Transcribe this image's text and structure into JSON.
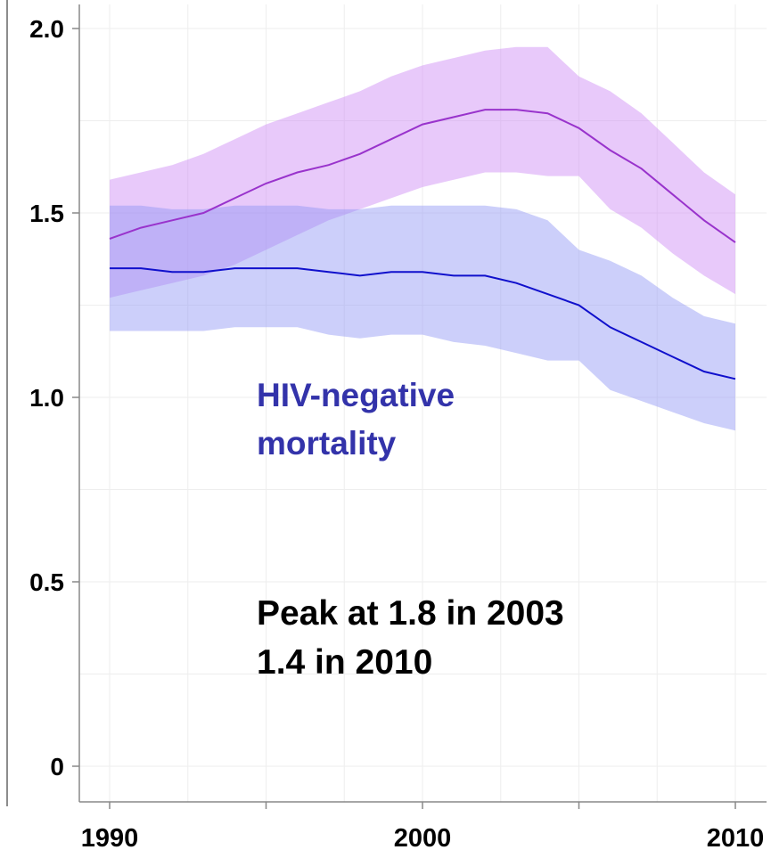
{
  "chart_data": {
    "type": "area",
    "title": "",
    "xlabel": "",
    "ylabel": "",
    "xlim": [
      1990,
      2010
    ],
    "ylim": [
      0,
      2.0
    ],
    "grid": true,
    "x_ticks": [
      {
        "value": 1990,
        "label": "1990"
      },
      {
        "value": 2000,
        "label": "2000"
      },
      {
        "value": 2010,
        "label": "2010"
      }
    ],
    "y_ticks": [
      {
        "value": 0,
        "label": "0"
      },
      {
        "value": 0.5,
        "label": "0.5"
      },
      {
        "value": 1.0,
        "label": "1.0"
      },
      {
        "value": 1.5,
        "label": "1.5"
      },
      {
        "value": 2.0,
        "label": "2.0"
      }
    ],
    "x": [
      1990,
      1991,
      1992,
      1993,
      1994,
      1995,
      1996,
      1997,
      1998,
      1999,
      2000,
      2001,
      2002,
      2003,
      2004,
      2005,
      2006,
      2007,
      2008,
      2009,
      2010
    ],
    "series": [
      {
        "key": "total",
        "line_color": "#9933cc",
        "band_color": "#cc88f5",
        "band_opacity": 0.45,
        "values": [
          1.43,
          1.46,
          1.48,
          1.5,
          1.54,
          1.58,
          1.61,
          1.63,
          1.66,
          1.7,
          1.74,
          1.76,
          1.78,
          1.78,
          1.77,
          1.73,
          1.67,
          1.62,
          1.55,
          1.48,
          1.42
        ],
        "lower": [
          1.27,
          1.29,
          1.31,
          1.33,
          1.36,
          1.4,
          1.44,
          1.48,
          1.51,
          1.54,
          1.57,
          1.59,
          1.61,
          1.61,
          1.6,
          1.6,
          1.51,
          1.46,
          1.39,
          1.33,
          1.28
        ],
        "upper": [
          1.59,
          1.61,
          1.63,
          1.66,
          1.7,
          1.74,
          1.77,
          1.8,
          1.83,
          1.87,
          1.9,
          1.92,
          1.94,
          1.95,
          1.95,
          1.87,
          1.83,
          1.77,
          1.69,
          1.61,
          1.55
        ]
      },
      {
        "key": "hiv_negative",
        "line_color": "#1010cc",
        "band_color": "#8f94f5",
        "band_opacity": 0.45,
        "values": [
          1.35,
          1.35,
          1.34,
          1.34,
          1.35,
          1.35,
          1.35,
          1.34,
          1.33,
          1.34,
          1.34,
          1.33,
          1.33,
          1.31,
          1.28,
          1.25,
          1.19,
          1.15,
          1.11,
          1.07,
          1.05
        ],
        "lower": [
          1.18,
          1.18,
          1.18,
          1.18,
          1.19,
          1.19,
          1.19,
          1.17,
          1.16,
          1.17,
          1.17,
          1.15,
          1.14,
          1.12,
          1.1,
          1.1,
          1.02,
          0.99,
          0.96,
          0.93,
          0.91
        ],
        "upper": [
          1.52,
          1.52,
          1.51,
          1.51,
          1.52,
          1.52,
          1.52,
          1.51,
          1.51,
          1.52,
          1.52,
          1.52,
          1.52,
          1.51,
          1.48,
          1.4,
          1.37,
          1.33,
          1.27,
          1.22,
          1.2
        ]
      }
    ],
    "annotations": [
      {
        "key": "hiv_label_line1",
        "text": "HIV-negative",
        "color": "#3333aa"
      },
      {
        "key": "hiv_label_line2",
        "text": "mortality",
        "color": "#3333aa"
      },
      {
        "key": "peak_line1",
        "text": "Peak at 1.8 in 2003",
        "color": "#000000"
      },
      {
        "key": "peak_line2",
        "text": "1.4 in 2010",
        "color": "#000000"
      }
    ]
  }
}
